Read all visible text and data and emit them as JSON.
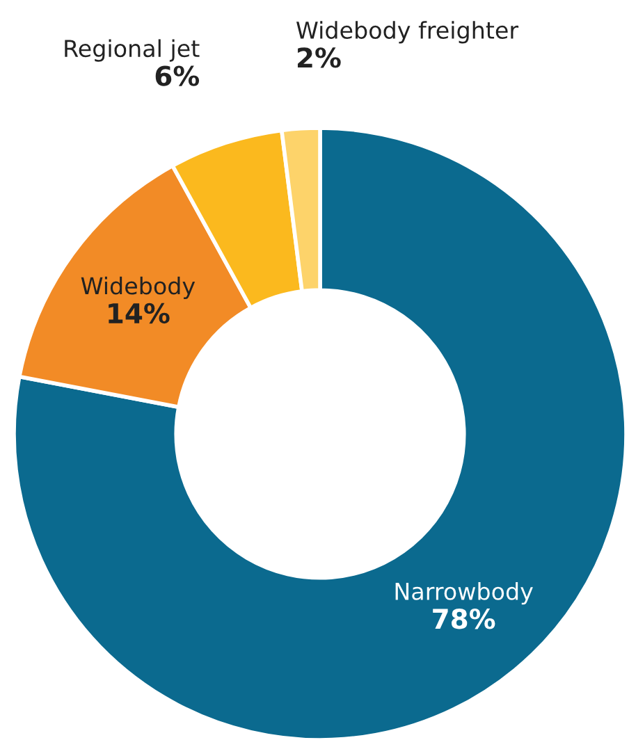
{
  "chart_data": {
    "type": "donut",
    "categories": [
      "Narrowbody",
      "Widebody",
      "Regional jet",
      "Widebody freighter"
    ],
    "values": [
      78,
      14,
      6,
      2
    ],
    "value_labels": [
      "78%",
      "14%",
      "6%",
      "2%"
    ],
    "colors": [
      "#0b6a8f",
      "#f28b26",
      "#fbb91e",
      "#fdd36a"
    ],
    "legend": false
  }
}
